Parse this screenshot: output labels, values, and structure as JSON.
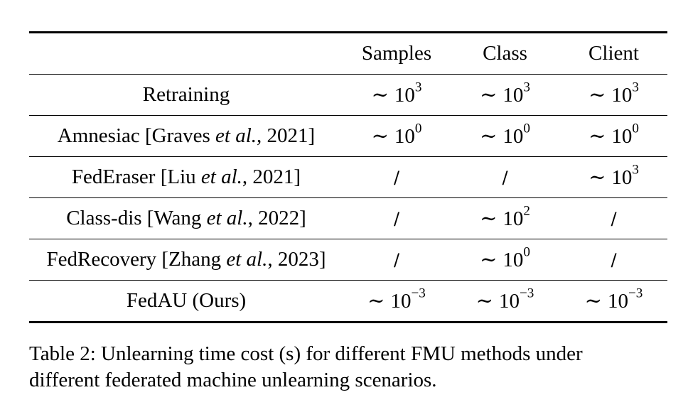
{
  "table": {
    "columns": [
      "",
      "Samples",
      "Class",
      "Client"
    ],
    "rows": [
      {
        "method": {
          "pre": "Retraining",
          "em": "",
          "post": ""
        },
        "cells": [
          {
            "base": "10",
            "exp": "3",
            "symbol": "∼"
          },
          {
            "base": "10",
            "exp": "3",
            "symbol": "∼"
          },
          {
            "base": "10",
            "exp": "3",
            "symbol": "∼"
          }
        ]
      },
      {
        "method": {
          "pre": "Amnesiac [Graves ",
          "em": "et al.",
          "post": ", 2021]"
        },
        "cells": [
          {
            "base": "10",
            "exp": "0",
            "symbol": "∼"
          },
          {
            "base": "10",
            "exp": "0",
            "symbol": "∼"
          },
          {
            "base": "10",
            "exp": "0",
            "symbol": "∼"
          }
        ]
      },
      {
        "method": {
          "pre": "FedEraser [Liu ",
          "em": "et al.",
          "post": ", 2021]"
        },
        "cells": [
          {
            "text": "/"
          },
          {
            "text": "/"
          },
          {
            "base": "10",
            "exp": "3",
            "symbol": "∼"
          }
        ]
      },
      {
        "method": {
          "pre": "Class-dis [Wang ",
          "em": "et al.",
          "post": ", 2022]"
        },
        "cells": [
          {
            "text": "/"
          },
          {
            "base": "10",
            "exp": "2",
            "symbol": "∼"
          },
          {
            "text": "/"
          }
        ]
      },
      {
        "method": {
          "pre": "FedRecovery [Zhang ",
          "em": "et al.",
          "post": ", 2023]"
        },
        "cells": [
          {
            "text": "/"
          },
          {
            "base": "10",
            "exp": "0",
            "symbol": "∼"
          },
          {
            "text": "/"
          }
        ]
      },
      {
        "method": {
          "pre": "FedAU (Ours)",
          "em": "",
          "post": ""
        },
        "cells": [
          {
            "base": "10",
            "exp": "−3",
            "symbol": "∼"
          },
          {
            "base": "10",
            "exp": "−3",
            "symbol": "∼"
          },
          {
            "base": "10",
            "exp": "−3",
            "symbol": "∼"
          }
        ]
      }
    ]
  },
  "caption": {
    "line1": "Table 2: Unlearning time cost (s) for different FMU methods under",
    "line2": "different federated machine unlearning scenarios."
  }
}
